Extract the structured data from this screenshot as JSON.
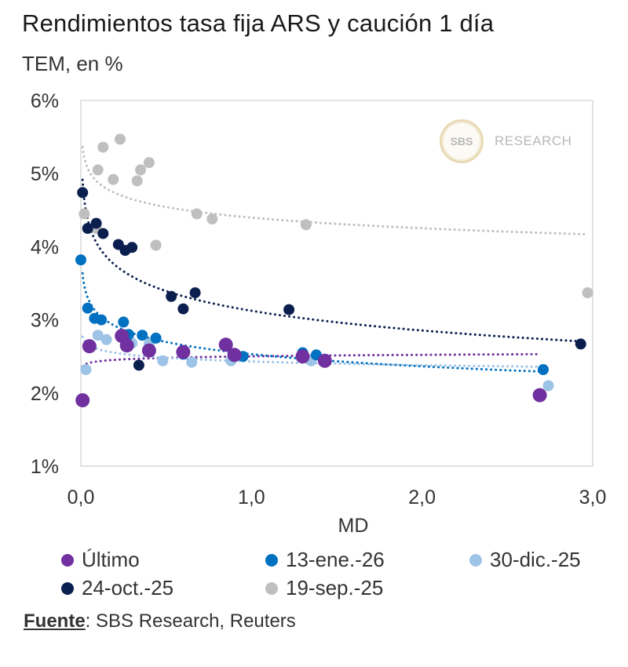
{
  "header": {
    "title": "Rendimientos tasa fija ARS y caución 1 día",
    "subtitle": "TEM, en %"
  },
  "logo": {
    "mark": "SBS",
    "text": "RESEARCH"
  },
  "source": {
    "label": "Fuente",
    "text": ": SBS Research, Reuters"
  },
  "chart_data": {
    "type": "scatter",
    "xlabel": "MD",
    "xlim": [
      0,
      3
    ],
    "ylim": [
      1,
      6
    ],
    "xticks": [
      "0,0",
      "1,0",
      "2,0",
      "3,0"
    ],
    "yticks": [
      "1%",
      "2%",
      "3%",
      "4%",
      "5%",
      "6%"
    ],
    "grid": false,
    "legend_position": "bottom",
    "trendlines": "dotted",
    "series": [
      {
        "name": "Último",
        "color": "#7030a0",
        "points": [
          [
            0.01,
            1.9
          ],
          [
            0.05,
            2.64
          ],
          [
            0.24,
            2.78
          ],
          [
            0.27,
            2.65
          ],
          [
            0.4,
            2.58
          ],
          [
            0.6,
            2.56
          ],
          [
            0.85,
            2.66
          ],
          [
            0.9,
            2.52
          ],
          [
            1.3,
            2.5
          ],
          [
            1.43,
            2.44
          ],
          [
            2.69,
            1.97
          ]
        ]
      },
      {
        "name": "13-ene.-26",
        "color": "#0070c0",
        "points": [
          [
            0.0,
            3.82
          ],
          [
            0.04,
            3.16
          ],
          [
            0.08,
            3.02
          ],
          [
            0.12,
            3.0
          ],
          [
            0.25,
            2.97
          ],
          [
            0.28,
            2.8
          ],
          [
            0.36,
            2.79
          ],
          [
            0.44,
            2.75
          ],
          [
            0.6,
            2.53
          ],
          [
            0.95,
            2.5
          ],
          [
            1.3,
            2.55
          ],
          [
            1.38,
            2.52
          ],
          [
            2.71,
            2.32
          ]
        ]
      },
      {
        "name": "30-dic.-25",
        "color": "#9dc3e6",
        "points": [
          [
            0.03,
            2.32
          ],
          [
            0.1,
            2.79
          ],
          [
            0.15,
            2.73
          ],
          [
            0.3,
            2.68
          ],
          [
            0.4,
            2.67
          ],
          [
            0.48,
            2.44
          ],
          [
            0.65,
            2.42
          ],
          [
            0.88,
            2.44
          ],
          [
            1.35,
            2.44
          ],
          [
            2.74,
            2.1
          ]
        ]
      },
      {
        "name": "24-oct.-25",
        "color": "#0b1f4f",
        "points": [
          [
            0.01,
            4.74
          ],
          [
            0.04,
            4.25
          ],
          [
            0.09,
            4.32
          ],
          [
            0.13,
            4.18
          ],
          [
            0.22,
            4.03
          ],
          [
            0.26,
            3.95
          ],
          [
            0.3,
            3.99
          ],
          [
            0.34,
            2.38
          ],
          [
            0.53,
            3.32
          ],
          [
            0.6,
            3.15
          ],
          [
            0.67,
            3.37
          ],
          [
            1.22,
            3.14
          ],
          [
            2.93,
            2.67
          ]
        ]
      },
      {
        "name": "19-sep.-25",
        "color": "#bfbfbf",
        "points": [
          [
            0.02,
            4.45
          ],
          [
            0.09,
            4.25
          ],
          [
            0.1,
            5.05
          ],
          [
            0.13,
            5.36
          ],
          [
            0.19,
            4.92
          ],
          [
            0.23,
            5.47
          ],
          [
            0.33,
            4.9
          ],
          [
            0.35,
            5.05
          ],
          [
            0.4,
            5.15
          ],
          [
            0.44,
            4.02
          ],
          [
            0.68,
            4.45
          ],
          [
            0.77,
            4.38
          ],
          [
            1.32,
            4.3
          ],
          [
            2.97,
            3.37
          ]
        ]
      }
    ]
  }
}
